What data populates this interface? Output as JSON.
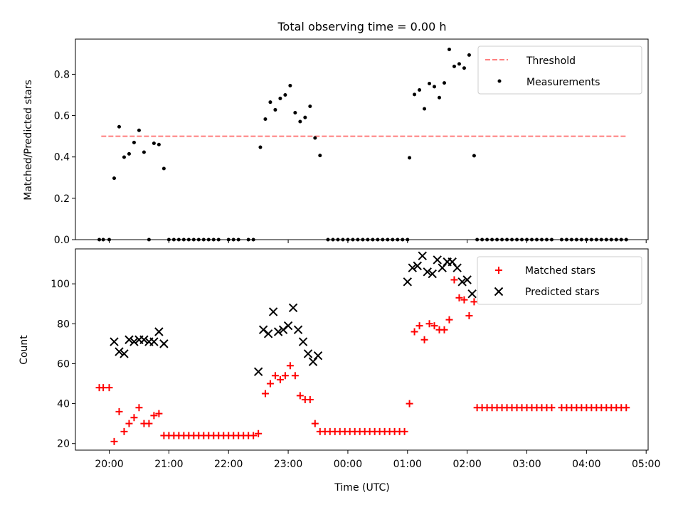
{
  "chart_data": [
    {
      "type": "scatter",
      "title": "Total observing time = 0.00 h",
      "ylabel": "Matched/Predicted stars",
      "xlabel": "",
      "ylim": [
        0,
        0.97
      ],
      "yticks": [
        0.0,
        0.2,
        0.4,
        0.6,
        0.8
      ],
      "ytick_labels": [
        "0.0",
        "0.2",
        "0.4",
        "0.6",
        "0.8"
      ],
      "legend_position": "top-right",
      "threshold": {
        "name": "Threshold",
        "value": 0.5,
        "x_start": "19:52",
        "x_end": "04:40",
        "color": "#ff7f7f",
        "style": "dashed"
      },
      "series": [
        {
          "name": "Measurements",
          "color": "#000000",
          "marker": "dot",
          "points": [
            [
              "19:50",
              0.0
            ],
            [
              "19:54",
              0.0
            ],
            [
              "20:00",
              0.0
            ],
            [
              "20:05",
              0.297
            ],
            [
              "20:10",
              0.546
            ],
            [
              "20:15",
              0.399
            ],
            [
              "20:20",
              0.415
            ],
            [
              "20:25",
              0.47
            ],
            [
              "20:30",
              0.529
            ],
            [
              "20:35",
              0.423
            ],
            [
              "20:40",
              0.0
            ],
            [
              "20:45",
              0.466
            ],
            [
              "20:50",
              0.46
            ],
            [
              "20:55",
              0.344
            ],
            [
              "21:00",
              0.0
            ],
            [
              "21:05",
              0.0
            ],
            [
              "21:10",
              0.0
            ],
            [
              "21:15",
              0.0
            ],
            [
              "21:20",
              0.0
            ],
            [
              "21:25",
              0.0
            ],
            [
              "21:30",
              0.0
            ],
            [
              "21:35",
              0.0
            ],
            [
              "21:40",
              0.0
            ],
            [
              "21:45",
              0.0
            ],
            [
              "21:50",
              0.0
            ],
            [
              "22:00",
              0.0
            ],
            [
              "22:05",
              0.0
            ],
            [
              "22:10",
              0.0
            ],
            [
              "22:20",
              0.0
            ],
            [
              "22:25",
              0.0
            ],
            [
              "22:32",
              0.447
            ],
            [
              "22:37",
              0.583
            ],
            [
              "22:42",
              0.665
            ],
            [
              "22:47",
              0.628
            ],
            [
              "22:52",
              0.683
            ],
            [
              "22:57",
              0.7
            ],
            [
              "23:02",
              0.745
            ],
            [
              "23:07",
              0.614
            ],
            [
              "23:12",
              0.571
            ],
            [
              "23:17",
              0.591
            ],
            [
              "23:22",
              0.645
            ],
            [
              "23:27",
              0.492
            ],
            [
              "23:32",
              0.407
            ],
            [
              "23:40",
              0.0
            ],
            [
              "23:45",
              0.0
            ],
            [
              "23:50",
              0.0
            ],
            [
              "23:55",
              0.0
            ],
            [
              "00:00",
              0.0
            ],
            [
              "00:05",
              0.0
            ],
            [
              "00:10",
              0.0
            ],
            [
              "00:15",
              0.0
            ],
            [
              "00:20",
              0.0
            ],
            [
              "00:25",
              0.0
            ],
            [
              "00:30",
              0.0
            ],
            [
              "00:35",
              0.0
            ],
            [
              "00:40",
              0.0
            ],
            [
              "00:45",
              0.0
            ],
            [
              "00:50",
              0.0
            ],
            [
              "00:55",
              0.0
            ],
            [
              "01:00",
              0.0
            ],
            [
              "01:02",
              0.396
            ],
            [
              "01:07",
              0.702
            ],
            [
              "01:12",
              0.724
            ],
            [
              "01:17",
              0.633
            ],
            [
              "01:22",
              0.755
            ],
            [
              "01:27",
              0.74
            ],
            [
              "01:32",
              0.687
            ],
            [
              "01:37",
              0.758
            ],
            [
              "01:42",
              0.92
            ],
            [
              "01:47",
              0.838
            ],
            [
              "01:52",
              0.85
            ],
            [
              "01:57",
              0.83
            ],
            [
              "02:02",
              0.893
            ],
            [
              "02:07",
              0.406
            ],
            [
              "02:10",
              0.0
            ],
            [
              "02:15",
              0.0
            ],
            [
              "02:20",
              0.0
            ],
            [
              "02:25",
              0.0
            ],
            [
              "02:30",
              0.0
            ],
            [
              "02:35",
              0.0
            ],
            [
              "02:40",
              0.0
            ],
            [
              "02:45",
              0.0
            ],
            [
              "02:50",
              0.0
            ],
            [
              "02:55",
              0.0
            ],
            [
              "03:00",
              0.0
            ],
            [
              "03:05",
              0.0
            ],
            [
              "03:10",
              0.0
            ],
            [
              "03:15",
              0.0
            ],
            [
              "03:20",
              0.0
            ],
            [
              "03:25",
              0.0
            ],
            [
              "03:35",
              0.0
            ],
            [
              "03:40",
              0.0
            ],
            [
              "03:45",
              0.0
            ],
            [
              "03:50",
              0.0
            ],
            [
              "03:55",
              0.0
            ],
            [
              "04:00",
              0.0
            ],
            [
              "04:05",
              0.0
            ],
            [
              "04:10",
              0.0
            ],
            [
              "04:15",
              0.0
            ],
            [
              "04:20",
              0.0
            ],
            [
              "04:25",
              0.0
            ],
            [
              "04:30",
              0.0
            ],
            [
              "04:35",
              0.0
            ],
            [
              "04:40",
              0.0
            ]
          ]
        }
      ]
    },
    {
      "type": "scatter",
      "title": "",
      "xlabel": "Time (UTC)",
      "ylabel": "Count",
      "ylim": [
        16.7,
        117.5
      ],
      "yticks": [
        20,
        40,
        60,
        80,
        100
      ],
      "ytick_labels": [
        "20",
        "40",
        "60",
        "80",
        "100"
      ],
      "x_start": "19:26",
      "x_end": "05:02",
      "xtick_labels": [
        "20:00",
        "21:00",
        "22:00",
        "23:00",
        "00:00",
        "01:00",
        "02:00",
        "03:00",
        "04:00",
        "05:00"
      ],
      "legend_position": "top-right",
      "series": [
        {
          "name": "Matched stars",
          "color": "#ff0000",
          "marker": "plus",
          "points": [
            [
              "19:50",
              48
            ],
            [
              "19:54",
              48
            ],
            [
              "20:00",
              48
            ],
            [
              "20:05",
              21
            ],
            [
              "20:10",
              36
            ],
            [
              "20:15",
              26
            ],
            [
              "20:20",
              30
            ],
            [
              "20:25",
              33
            ],
            [
              "20:30",
              38
            ],
            [
              "20:35",
              30
            ],
            [
              "20:40",
              30
            ],
            [
              "20:45",
              34
            ],
            [
              "20:50",
              35
            ],
            [
              "20:55",
              24
            ],
            [
              "21:00",
              24
            ],
            [
              "21:05",
              24
            ],
            [
              "21:10",
              24
            ],
            [
              "21:15",
              24
            ],
            [
              "21:20",
              24
            ],
            [
              "21:25",
              24
            ],
            [
              "21:30",
              24
            ],
            [
              "21:35",
              24
            ],
            [
              "21:40",
              24
            ],
            [
              "21:45",
              24
            ],
            [
              "21:50",
              24
            ],
            [
              "21:55",
              24
            ],
            [
              "22:00",
              24
            ],
            [
              "22:05",
              24
            ],
            [
              "22:10",
              24
            ],
            [
              "22:15",
              24
            ],
            [
              "22:20",
              24
            ],
            [
              "22:25",
              24
            ],
            [
              "22:30",
              25
            ],
            [
              "22:37",
              45
            ],
            [
              "22:42",
              50
            ],
            [
              "22:47",
              54
            ],
            [
              "22:52",
              52
            ],
            [
              "22:57",
              54
            ],
            [
              "23:02",
              59
            ],
            [
              "23:07",
              54
            ],
            [
              "23:12",
              44
            ],
            [
              "23:17",
              42
            ],
            [
              "23:22",
              42
            ],
            [
              "23:27",
              30
            ],
            [
              "23:32",
              26
            ],
            [
              "23:37",
              26
            ],
            [
              "23:42",
              26
            ],
            [
              "23:47",
              26
            ],
            [
              "23:52",
              26
            ],
            [
              "23:57",
              26
            ],
            [
              "00:02",
              26
            ],
            [
              "00:07",
              26
            ],
            [
              "00:12",
              26
            ],
            [
              "00:17",
              26
            ],
            [
              "00:22",
              26
            ],
            [
              "00:27",
              26
            ],
            [
              "00:32",
              26
            ],
            [
              "00:37",
              26
            ],
            [
              "00:42",
              26
            ],
            [
              "00:47",
              26
            ],
            [
              "00:52",
              26
            ],
            [
              "00:57",
              26
            ],
            [
              "01:02",
              40
            ],
            [
              "01:07",
              76
            ],
            [
              "01:12",
              79
            ],
            [
              "01:17",
              72
            ],
            [
              "01:22",
              80
            ],
            [
              "01:27",
              79
            ],
            [
              "01:32",
              77
            ],
            [
              "01:37",
              77
            ],
            [
              "01:42",
              82
            ],
            [
              "01:47",
              102
            ],
            [
              "01:52",
              93
            ],
            [
              "01:57",
              92
            ],
            [
              "02:02",
              84
            ],
            [
              "02:07",
              91
            ],
            [
              "02:10",
              38
            ],
            [
              "02:15",
              38
            ],
            [
              "02:20",
              38
            ],
            [
              "02:25",
              38
            ],
            [
              "02:30",
              38
            ],
            [
              "02:35",
              38
            ],
            [
              "02:40",
              38
            ],
            [
              "02:45",
              38
            ],
            [
              "02:50",
              38
            ],
            [
              "02:55",
              38
            ],
            [
              "03:00",
              38
            ],
            [
              "03:05",
              38
            ],
            [
              "03:10",
              38
            ],
            [
              "03:15",
              38
            ],
            [
              "03:20",
              38
            ],
            [
              "03:25",
              38
            ],
            [
              "03:35",
              38
            ],
            [
              "03:40",
              38
            ],
            [
              "03:45",
              38
            ],
            [
              "03:50",
              38
            ],
            [
              "03:55",
              38
            ],
            [
              "04:00",
              38
            ],
            [
              "04:05",
              38
            ],
            [
              "04:10",
              38
            ],
            [
              "04:15",
              38
            ],
            [
              "04:20",
              38
            ],
            [
              "04:25",
              38
            ],
            [
              "04:30",
              38
            ],
            [
              "04:35",
              38
            ],
            [
              "04:40",
              38
            ]
          ]
        },
        {
          "name": "Predicted stars",
          "color": "#000000",
          "marker": "x",
          "points": [
            [
              "20:05",
              71
            ],
            [
              "20:10",
              66
            ],
            [
              "20:15",
              65
            ],
            [
              "20:20",
              72
            ],
            [
              "20:25",
              71
            ],
            [
              "20:30",
              72
            ],
            [
              "20:35",
              72
            ],
            [
              "20:40",
              71
            ],
            [
              "20:45",
              71
            ],
            [
              "20:50",
              76
            ],
            [
              "20:55",
              70
            ],
            [
              "22:30",
              56
            ],
            [
              "22:35",
              77
            ],
            [
              "22:40",
              75
            ],
            [
              "22:45",
              86
            ],
            [
              "22:50",
              76
            ],
            [
              "22:55",
              77
            ],
            [
              "23:00",
              79
            ],
            [
              "23:05",
              88
            ],
            [
              "23:10",
              77
            ],
            [
              "23:15",
              71
            ],
            [
              "23:20",
              65
            ],
            [
              "23:25",
              61
            ],
            [
              "23:30",
              64
            ],
            [
              "01:00",
              101
            ],
            [
              "01:05",
              108
            ],
            [
              "01:10",
              109
            ],
            [
              "01:15",
              114
            ],
            [
              "01:20",
              106
            ],
            [
              "01:25",
              105
            ],
            [
              "01:30",
              112
            ],
            [
              "01:35",
              108
            ],
            [
              "01:40",
              111
            ],
            [
              "01:45",
              111
            ],
            [
              "01:50",
              108
            ],
            [
              "01:55",
              101
            ],
            [
              "02:00",
              102
            ],
            [
              "02:05",
              95
            ]
          ]
        }
      ]
    }
  ]
}
